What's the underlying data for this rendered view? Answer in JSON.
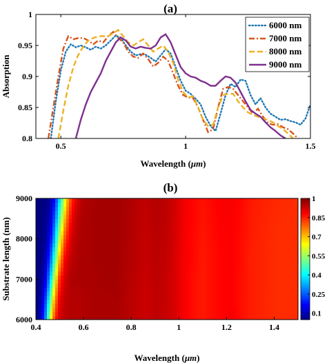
{
  "chart_data": [
    {
      "type": "line",
      "panel_label": "(a)",
      "xlabel": "Wavelength (",
      "xlabel_unit": "μm",
      "xlabel_close": ")",
      "ylabel": "Absorption",
      "xlim": [
        0.4,
        1.5
      ],
      "ylim": [
        0.8,
        1.0
      ],
      "xticks": [
        0.5,
        1,
        1.5
      ],
      "xtick_labels": [
        "0.5",
        "1",
        "1.5"
      ],
      "yticks": [
        0.8,
        0.85,
        0.9,
        0.95,
        1
      ],
      "ytick_labels": [
        "0.8",
        "0.85",
        "0.9",
        "0.95",
        "1"
      ],
      "legend_position": "top-right",
      "series": [
        {
          "name": "6000 nm",
          "color": "#1f77b4",
          "dash": "dotted",
          "x": [
            0.46,
            0.48,
            0.5,
            0.52,
            0.54,
            0.56,
            0.58,
            0.6,
            0.62,
            0.64,
            0.66,
            0.68,
            0.7,
            0.72,
            0.74,
            0.76,
            0.78,
            0.8,
            0.82,
            0.84,
            0.86,
            0.88,
            0.9,
            0.92,
            0.94,
            0.96,
            0.98,
            1.0,
            1.02,
            1.04,
            1.06,
            1.08,
            1.1,
            1.12,
            1.14,
            1.16,
            1.18,
            1.2,
            1.22,
            1.24,
            1.26,
            1.28,
            1.3,
            1.32,
            1.34,
            1.36,
            1.38,
            1.4,
            1.42,
            1.44,
            1.46,
            1.48,
            1.5
          ],
          "y": [
            0.8,
            0.86,
            0.91,
            0.94,
            0.952,
            0.947,
            0.95,
            0.947,
            0.943,
            0.948,
            0.945,
            0.95,
            0.958,
            0.966,
            0.962,
            0.95,
            0.94,
            0.934,
            0.936,
            0.935,
            0.93,
            0.924,
            0.934,
            0.944,
            0.937,
            0.915,
            0.893,
            0.877,
            0.872,
            0.864,
            0.855,
            0.835,
            0.82,
            0.812,
            0.84,
            0.87,
            0.888,
            0.883,
            0.895,
            0.893,
            0.87,
            0.855,
            0.865,
            0.85,
            0.84,
            0.835,
            0.83,
            0.831,
            0.828,
            0.826,
            0.822,
            0.832,
            0.855
          ]
        },
        {
          "name": "7000 nm",
          "color": "#d95319",
          "dash": "dashdot",
          "x": [
            0.45,
            0.47,
            0.49,
            0.51,
            0.53,
            0.55,
            0.57,
            0.59,
            0.61,
            0.63,
            0.65,
            0.67,
            0.69,
            0.71,
            0.73,
            0.75,
            0.77,
            0.79,
            0.81,
            0.83,
            0.85,
            0.87,
            0.89,
            0.91,
            0.93,
            0.95,
            0.97,
            0.99,
            1.01,
            1.03,
            1.05,
            1.07,
            1.09,
            1.11,
            1.13,
            1.15,
            1.17,
            1.19,
            1.21,
            1.23,
            1.25,
            1.27,
            1.29,
            1.31,
            1.33,
            1.35,
            1.37,
            1.39,
            1.41,
            1.43,
            1.45
          ],
          "y": [
            0.8,
            0.85,
            0.9,
            0.945,
            0.965,
            0.96,
            0.962,
            0.962,
            0.958,
            0.952,
            0.958,
            0.955,
            0.965,
            0.972,
            0.962,
            0.955,
            0.94,
            0.932,
            0.93,
            0.937,
            0.928,
            0.916,
            0.922,
            0.932,
            0.925,
            0.905,
            0.885,
            0.87,
            0.866,
            0.865,
            0.85,
            0.83,
            0.81,
            0.815,
            0.85,
            0.88,
            0.883,
            0.88,
            0.87,
            0.86,
            0.85,
            0.84,
            0.848,
            0.835,
            0.825,
            0.822,
            0.823,
            0.818,
            0.815,
            0.808,
            0.8
          ]
        },
        {
          "name": "8000 nm",
          "color": "#edb120",
          "dash": "dashed",
          "x": [
            0.49,
            0.51,
            0.53,
            0.55,
            0.57,
            0.59,
            0.61,
            0.63,
            0.65,
            0.67,
            0.69,
            0.71,
            0.73,
            0.75,
            0.77,
            0.79,
            0.81,
            0.83,
            0.85,
            0.87,
            0.89,
            0.91,
            0.93,
            0.95,
            0.97,
            0.99,
            1.01,
            1.03,
            1.05,
            1.07,
            1.09,
            1.11,
            1.13,
            1.15,
            1.17,
            1.19,
            1.21,
            1.23,
            1.25,
            1.27,
            1.29,
            1.31,
            1.33,
            1.35,
            1.37,
            1.39,
            1.41,
            1.43
          ],
          "y": [
            0.8,
            0.845,
            0.885,
            0.915,
            0.935,
            0.948,
            0.958,
            0.962,
            0.965,
            0.965,
            0.965,
            0.97,
            0.975,
            0.965,
            0.955,
            0.95,
            0.955,
            0.96,
            0.95,
            0.94,
            0.945,
            0.95,
            0.94,
            0.922,
            0.895,
            0.875,
            0.866,
            0.868,
            0.85,
            0.83,
            0.82,
            0.822,
            0.85,
            0.87,
            0.872,
            0.872,
            0.86,
            0.85,
            0.842,
            0.838,
            0.835,
            0.832,
            0.83,
            0.826,
            0.82,
            0.815,
            0.808,
            0.8
          ]
        },
        {
          "name": "9000 nm",
          "color": "#7e2f8e",
          "dash": "solid",
          "x": [
            0.56,
            0.58,
            0.6,
            0.62,
            0.64,
            0.66,
            0.68,
            0.7,
            0.72,
            0.74,
            0.76,
            0.78,
            0.8,
            0.82,
            0.84,
            0.86,
            0.88,
            0.9,
            0.92,
            0.94,
            0.96,
            0.98,
            1.0,
            1.02,
            1.04,
            1.06,
            1.08,
            1.1,
            1.12,
            1.14,
            1.16,
            1.18,
            1.2,
            1.22,
            1.24,
            1.26,
            1.28,
            1.3,
            1.32,
            1.34,
            1.36,
            1.38,
            1.4
          ],
          "y": [
            0.8,
            0.83,
            0.855,
            0.875,
            0.89,
            0.905,
            0.925,
            0.94,
            0.955,
            0.963,
            0.958,
            0.948,
            0.945,
            0.948,
            0.946,
            0.945,
            0.95,
            0.963,
            0.968,
            0.955,
            0.935,
            0.915,
            0.905,
            0.9,
            0.898,
            0.893,
            0.89,
            0.885,
            0.885,
            0.893,
            0.9,
            0.898,
            0.89,
            0.875,
            0.86,
            0.846,
            0.84,
            0.835,
            0.826,
            0.818,
            0.812,
            0.805,
            0.8
          ]
        }
      ]
    },
    {
      "type": "heatmap",
      "panel_label": "(b)",
      "xlabel": "Wavelength (",
      "xlabel_unit": "μm",
      "xlabel_close": ")",
      "ylabel": "Substrate length (nm)",
      "xlim": [
        0.4,
        1.5
      ],
      "ylim": [
        6000,
        9000
      ],
      "xticks": [
        0.4,
        0.6,
        0.8,
        1,
        1.2,
        1.4
      ],
      "xtick_labels": [
        "0.4",
        "0.6",
        "0.8",
        "1",
        "1.2",
        "1.4"
      ],
      "yticks": [
        6000,
        7000,
        8000,
        9000
      ],
      "ytick_labels": [
        "6000",
        "7000",
        "8000",
        "9000"
      ],
      "colorbar": {
        "colormap": "jet",
        "range": [
          0.05,
          1.0
        ],
        "ticks": [
          0.1,
          0.25,
          0.4,
          0.55,
          0.7,
          0.85,
          1
        ],
        "tick_labels": [
          "0.1",
          "0.25",
          "0.4",
          "0.55",
          "0.7",
          "0.85",
          "1"
        ]
      },
      "y": [
        6000,
        6500,
        7000,
        7500,
        8000,
        8500,
        9000
      ],
      "x": [
        0.4,
        0.42,
        0.44,
        0.46,
        0.48,
        0.5,
        0.52,
        0.54,
        0.56,
        0.58,
        0.6,
        0.63,
        0.66,
        0.7,
        0.74,
        0.78,
        0.82,
        0.86,
        0.9,
        0.94,
        0.98,
        1.02,
        1.06,
        1.1,
        1.14,
        1.18,
        1.22,
        1.26,
        1.3,
        1.34,
        1.38,
        1.42,
        1.46,
        1.5
      ],
      "values": [
        [
          0.05,
          0.1,
          0.3,
          0.6,
          0.85,
          0.93,
          0.94,
          0.95,
          0.95,
          0.95,
          0.955,
          0.958,
          0.96,
          0.96,
          0.962,
          0.95,
          0.94,
          0.93,
          0.94,
          0.935,
          0.92,
          0.89,
          0.87,
          0.86,
          0.87,
          0.88,
          0.89,
          0.87,
          0.855,
          0.85,
          0.845,
          0.84,
          0.84,
          0.84
        ],
        [
          0.05,
          0.08,
          0.22,
          0.48,
          0.75,
          0.9,
          0.94,
          0.95,
          0.95,
          0.95,
          0.955,
          0.958,
          0.96,
          0.96,
          0.962,
          0.95,
          0.94,
          0.93,
          0.94,
          0.935,
          0.92,
          0.89,
          0.87,
          0.86,
          0.87,
          0.88,
          0.885,
          0.87,
          0.855,
          0.85,
          0.845,
          0.84,
          0.84,
          0.84
        ],
        [
          0.05,
          0.06,
          0.14,
          0.35,
          0.62,
          0.85,
          0.92,
          0.95,
          0.96,
          0.96,
          0.96,
          0.96,
          0.962,
          0.965,
          0.965,
          0.952,
          0.942,
          0.932,
          0.942,
          0.935,
          0.92,
          0.89,
          0.87,
          0.86,
          0.87,
          0.88,
          0.885,
          0.87,
          0.855,
          0.85,
          0.845,
          0.84,
          0.84,
          0.84
        ],
        [
          0.05,
          0.05,
          0.1,
          0.24,
          0.48,
          0.72,
          0.88,
          0.93,
          0.95,
          0.958,
          0.96,
          0.962,
          0.965,
          0.965,
          0.966,
          0.955,
          0.945,
          0.935,
          0.945,
          0.94,
          0.92,
          0.89,
          0.875,
          0.86,
          0.87,
          0.88,
          0.885,
          0.872,
          0.855,
          0.85,
          0.845,
          0.84,
          0.84,
          0.84
        ],
        [
          0.05,
          0.05,
          0.07,
          0.16,
          0.35,
          0.6,
          0.8,
          0.9,
          0.94,
          0.955,
          0.96,
          0.962,
          0.965,
          0.966,
          0.966,
          0.958,
          0.946,
          0.936,
          0.946,
          0.942,
          0.922,
          0.892,
          0.875,
          0.862,
          0.872,
          0.882,
          0.885,
          0.872,
          0.857,
          0.85,
          0.845,
          0.84,
          0.84,
          0.84
        ],
        [
          0.05,
          0.05,
          0.06,
          0.11,
          0.26,
          0.48,
          0.7,
          0.85,
          0.92,
          0.95,
          0.958,
          0.962,
          0.965,
          0.966,
          0.966,
          0.958,
          0.948,
          0.938,
          0.948,
          0.944,
          0.924,
          0.894,
          0.877,
          0.864,
          0.874,
          0.884,
          0.886,
          0.874,
          0.858,
          0.852,
          0.846,
          0.842,
          0.84,
          0.84
        ],
        [
          0.05,
          0.05,
          0.05,
          0.08,
          0.18,
          0.38,
          0.6,
          0.78,
          0.88,
          0.93,
          0.955,
          0.96,
          0.965,
          0.966,
          0.966,
          0.96,
          0.95,
          0.94,
          0.95,
          0.946,
          0.926,
          0.896,
          0.878,
          0.866,
          0.876,
          0.886,
          0.888,
          0.876,
          0.86,
          0.854,
          0.848,
          0.844,
          0.842,
          0.84
        ]
      ]
    }
  ]
}
